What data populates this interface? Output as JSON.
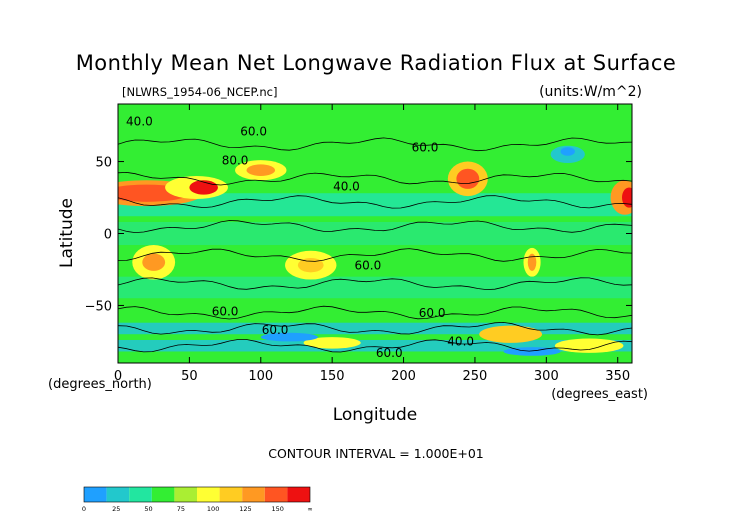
{
  "chart_data": {
    "type": "heatmap",
    "title": "Monthly Mean Net Longwave Radiation Flux at Surface",
    "file_label": "[NLWRS_1954-06_NCEP.nc]",
    "units_label": "(units:W/m^2)",
    "xlabel": "Longitude",
    "ylabel": "Latitude",
    "x_unit": "(degrees_east)",
    "y_unit": "(degrees_north)",
    "xlim": [
      0,
      360
    ],
    "ylim": [
      -90,
      90
    ],
    "x_ticks": [
      0,
      50,
      100,
      150,
      200,
      250,
      300,
      350
    ],
    "y_ticks": [
      50,
      0,
      -50
    ],
    "contour_interval": "CONTOUR INTERVAL = 1.000E+01",
    "contour_labels": [
      {
        "text": "40.0",
        "lon": 15,
        "lat": 75
      },
      {
        "text": "60.0",
        "lon": 95,
        "lat": 68
      },
      {
        "text": "60.0",
        "lon": 215,
        "lat": 57
      },
      {
        "text": "80.0",
        "lon": 82,
        "lat": 48
      },
      {
        "text": "40.0",
        "lon": 160,
        "lat": 30
      },
      {
        "text": "60.0",
        "lon": 175,
        "lat": -25
      },
      {
        "text": "60.0",
        "lon": 75,
        "lat": -57
      },
      {
        "text": "60.0",
        "lon": 220,
        "lat": -58
      },
      {
        "text": "60.0",
        "lon": 110,
        "lat": -70
      },
      {
        "text": "40.0",
        "lon": 240,
        "lat": -78
      },
      {
        "text": "60.0",
        "lon": 190,
        "lat": -86
      }
    ],
    "colorbar": {
      "levels": [
        "0",
        "25",
        "50",
        "75",
        "100",
        "125",
        "150",
        "∞"
      ],
      "colors": [
        "#1fa0ff",
        "#22c8cc",
        "#22e6a0",
        "#33ee33",
        "#aaee33",
        "#ffff33",
        "#ffcc22",
        "#ff9922",
        "#ff5522",
        "#ee1111"
      ]
    }
  }
}
